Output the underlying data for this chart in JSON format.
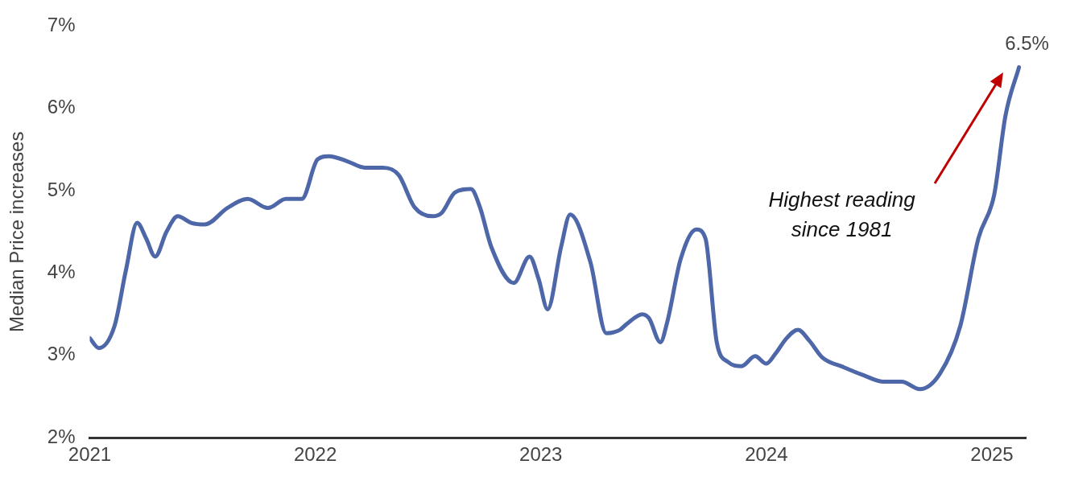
{
  "chart_data": {
    "type": "line",
    "ylabel": "Median Price increases",
    "x": [
      2021.0,
      2021.04,
      2021.11,
      2021.16,
      2021.21,
      2021.25,
      2021.29,
      2021.34,
      2021.39,
      2021.45,
      2021.51,
      2021.61,
      2021.7,
      2021.79,
      2021.87,
      2021.94,
      2022.01,
      2022.06,
      2022.14,
      2022.22,
      2022.3,
      2022.37,
      2022.44,
      2022.52,
      2022.56,
      2022.62,
      2022.69,
      2022.73,
      2022.78,
      2022.88,
      2022.95,
      2022.99,
      2023.03,
      2023.09,
      2023.13,
      2023.22,
      2023.29,
      2023.35,
      2023.38,
      2023.45,
      2023.48,
      2023.53,
      2023.56,
      2023.62,
      2023.69,
      2023.73,
      2023.78,
      2023.83,
      2023.89,
      2023.95,
      2024.0,
      2024.04,
      2024.09,
      2024.14,
      2024.19,
      2024.25,
      2024.34,
      2024.43,
      2024.52,
      2024.6,
      2024.68,
      2024.77,
      2024.86,
      2024.94,
      2025.01,
      2025.06,
      2025.12
    ],
    "series": [
      {
        "color": "#4e67a8",
        "values": [
          3.21,
          3.09,
          3.36,
          4.03,
          4.61,
          4.42,
          4.2,
          4.5,
          4.69,
          4.61,
          4.59,
          4.79,
          4.9,
          4.79,
          4.9,
          4.9,
          5.38,
          5.42,
          5.36,
          5.28,
          5.28,
          5.19,
          4.8,
          4.69,
          4.73,
          4.98,
          5.02,
          4.8,
          4.32,
          3.88,
          4.2,
          3.93,
          3.56,
          4.32,
          4.71,
          4.13,
          3.27,
          3.31,
          3.38,
          3.5,
          3.45,
          3.16,
          3.4,
          4.17,
          4.53,
          4.42,
          3.16,
          2.92,
          2.87,
          2.99,
          2.9,
          3.02,
          3.21,
          3.31,
          3.18,
          2.97,
          2.86,
          2.76,
          2.68,
          2.68,
          2.59,
          2.78,
          3.36,
          4.42,
          4.95,
          5.91,
          6.5
        ]
      }
    ],
    "xlim": [
      2021,
      2025.15
    ],
    "xticks": [
      2021,
      2022,
      2023,
      2024,
      2025
    ],
    "ylim": [
      2,
      7
    ],
    "yticks": [
      {
        "value": 2,
        "label": "2%"
      },
      {
        "value": 3,
        "label": "3%"
      },
      {
        "value": 4,
        "label": "4%"
      },
      {
        "value": 5,
        "label": "5%"
      },
      {
        "value": 6,
        "label": "6%"
      },
      {
        "value": 7,
        "label": "7%"
      }
    ],
    "annotations": [
      {
        "text": "6.5%",
        "x": 2025.12,
        "y": 6.5
      },
      "Highest reading\nsince 1981"
    ],
    "grid": false,
    "legend": false,
    "marker": "none",
    "line_style": "solid"
  }
}
